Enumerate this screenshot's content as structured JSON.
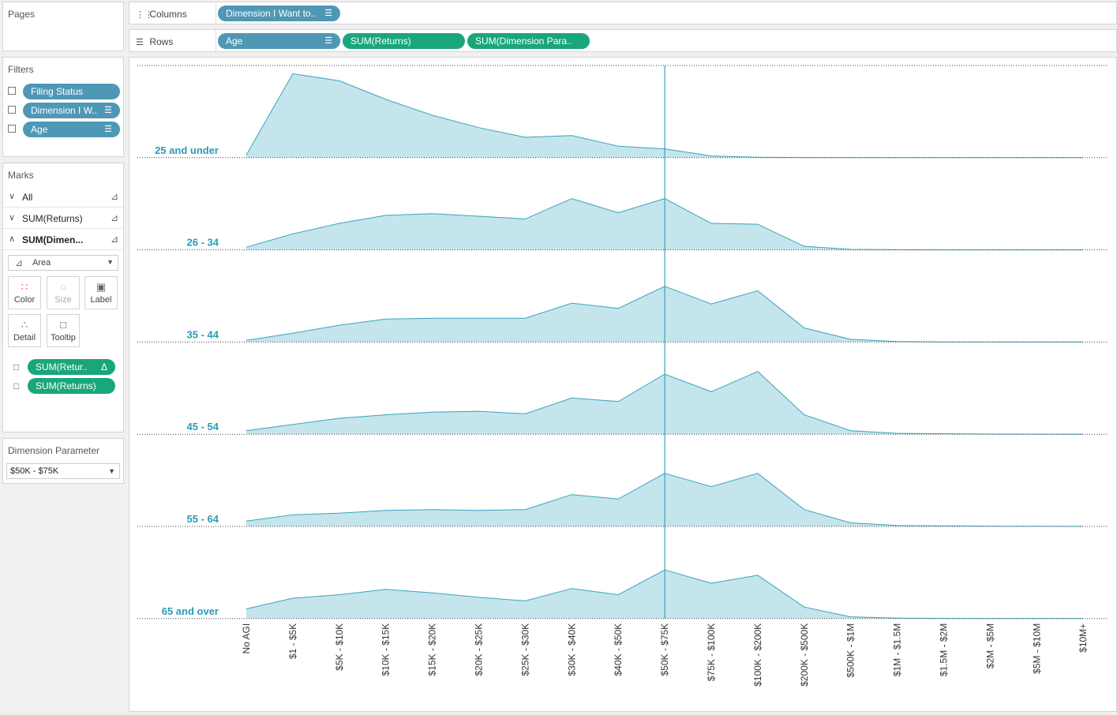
{
  "pages_panel": {
    "title": "Pages"
  },
  "filters_panel": {
    "title": "Filters",
    "items": [
      "Filing Status",
      "Dimension I W..",
      "Age"
    ]
  },
  "marks_panel": {
    "title": "Marks",
    "rows": [
      "All",
      "SUM(Returns)",
      "SUM(Dimen..."
    ],
    "mark_type": "Area",
    "buttons": [
      "Color",
      "Size",
      "Label",
      "Detail",
      "Tooltip"
    ],
    "pills": [
      "SUM(Retur..",
      "SUM(Returns)"
    ]
  },
  "parameter_panel": {
    "title": "Dimension Parameter",
    "value": "$50K - $75K"
  },
  "shelves": {
    "columns_label": "Columns",
    "columns_pill": "Dimension I Want to..",
    "rows_label": "Rows",
    "rows_pills": [
      "Age",
      "SUM(Returns)",
      "SUM(Dimension Para.."
    ]
  },
  "colors": {
    "area_fill": "#c4e5ec",
    "area_line": "#3ba3bd",
    "row_label": "#2a9bb5",
    "pill_blue": "#4e98b5",
    "pill_green": "#1aa67a"
  },
  "chart_data": {
    "type": "area",
    "categories": [
      "No AGI",
      "$1 - $5K",
      "$5K - $10K",
      "$10K - $15K",
      "$15K - $20K",
      "$20K - $25K",
      "$25K - $30K",
      "$30K - $40K",
      "$40K - $50K",
      "$50K - $75K",
      "$75K - $100K",
      "$100K - $200K",
      "$200K - $500K",
      "$500K - $1M",
      "$1M - $1.5M",
      "$1.5M - $2M",
      "$2M - $5M",
      "$5M - $10M",
      "$10M+"
    ],
    "highlighted_category": "$50K - $75K",
    "ylim": [
      0,
      100
    ],
    "grid": false,
    "series": [
      {
        "name": "25 and under",
        "values": [
          3,
          95,
          87,
          66,
          48,
          34,
          23,
          25,
          13,
          10,
          2,
          0.5,
          0.2,
          0.1,
          0,
          0,
          0,
          0,
          0
        ]
      },
      {
        "name": "26 - 34",
        "values": [
          3,
          18,
          30,
          39,
          41,
          38,
          35,
          58,
          42,
          58,
          30,
          29,
          4,
          0.5,
          0.2,
          0,
          0,
          0,
          0
        ]
      },
      {
        "name": "35 - 44",
        "values": [
          2,
          10,
          19,
          26,
          27,
          27,
          27,
          44,
          38,
          63,
          43,
          58,
          16,
          3,
          0.5,
          0.2,
          0.1,
          0,
          0
        ]
      },
      {
        "name": "45 - 54",
        "values": [
          4,
          11,
          18,
          22,
          25,
          26,
          23,
          41,
          37,
          68,
          48,
          71,
          22,
          4,
          1,
          0.5,
          0.2,
          0.1,
          0
        ]
      },
      {
        "name": "55 - 64",
        "values": [
          6,
          13,
          15,
          18,
          19,
          18,
          19,
          36,
          31,
          60,
          45,
          60,
          19,
          4,
          1,
          0.5,
          0.2,
          0.1,
          0
        ]
      },
      {
        "name": "65 and over",
        "values": [
          11,
          23,
          27,
          33,
          29,
          24,
          20,
          34,
          27,
          55,
          40,
          49,
          13,
          2,
          0.5,
          0.2,
          0.1,
          0,
          0
        ]
      }
    ]
  }
}
